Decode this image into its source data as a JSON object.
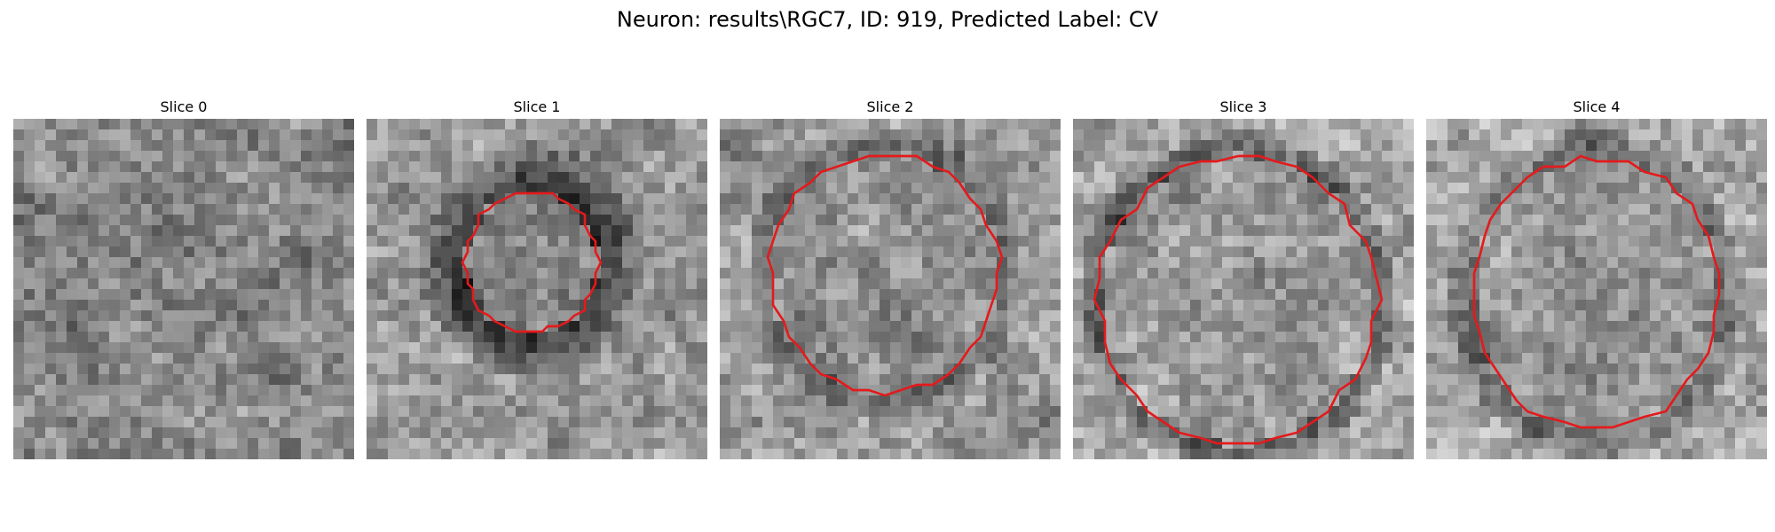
{
  "figure": {
    "title": "Neuron: results\\RGC7, ID: 919, Predicted Label: CV"
  },
  "panels": [
    {
      "title": "Slice 0",
      "has_contour": false
    },
    {
      "title": "Slice 1",
      "has_contour": true
    },
    {
      "title": "Slice 2",
      "has_contour": true
    },
    {
      "title": "Slice 3",
      "has_contour": true
    },
    {
      "title": "Slice 4",
      "has_contour": true
    }
  ],
  "colors": {
    "contour": "#e41a1c",
    "background": "#ffffff"
  },
  "image": {
    "colormap": "grayscale",
    "grid_size": 32
  }
}
